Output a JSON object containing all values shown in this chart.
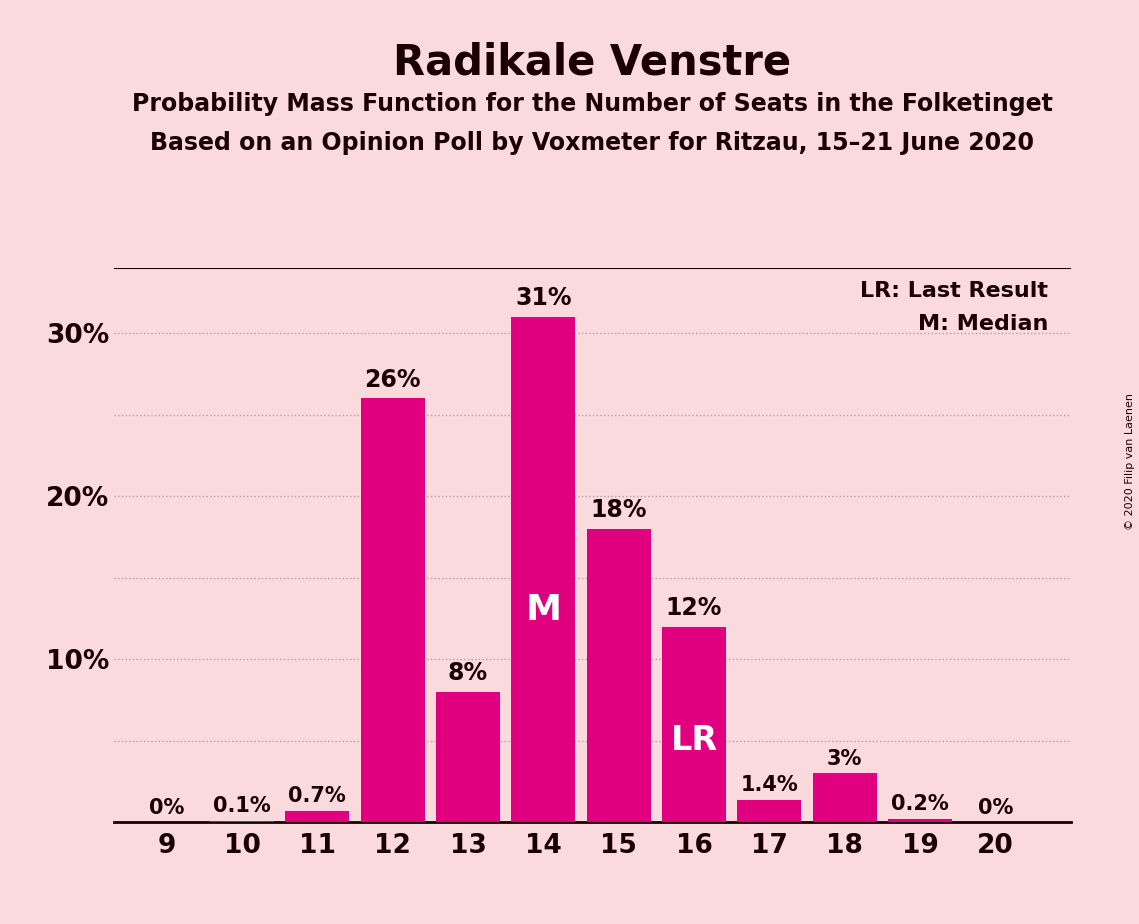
{
  "title": "Radikale Venstre",
  "subtitle1": "Probability Mass Function for the Number of Seats in the Folketinget",
  "subtitle2": "Based on an Opinion Poll by Voxmeter for Ritzau, 15–21 June 2020",
  "copyright": "© 2020 Filip van Laenen",
  "seats": [
    9,
    10,
    11,
    12,
    13,
    14,
    15,
    16,
    17,
    18,
    19,
    20
  ],
  "values": [
    0.0,
    0.1,
    0.7,
    26.0,
    8.0,
    31.0,
    18.0,
    12.0,
    1.4,
    3.0,
    0.2,
    0.0
  ],
  "labels": [
    "0%",
    "0.1%",
    "0.7%",
    "26%",
    "8%",
    "31%",
    "18%",
    "12%",
    "1.4%",
    "3%",
    "0.2%",
    "0%"
  ],
  "bar_color": "#e0007f",
  "background_color": "#fadadd",
  "text_color": "#1a0000",
  "label_color_outside": "#1a0000",
  "label_color_inside": "#ffffff",
  "median_seat": 14,
  "last_result_seat": 16,
  "ylim": [
    0,
    34
  ],
  "yticks": [
    10,
    20,
    30
  ],
  "ytick_labels": [
    "10%",
    "20%",
    "30%"
  ],
  "grid_yticks": [
    5,
    10,
    15,
    20,
    25,
    30
  ],
  "grid_color": "#b0a0a8",
  "legend_lr": "LR: Last Result",
  "legend_m": "M: Median",
  "title_fontsize": 30,
  "subtitle_fontsize": 17,
  "axis_fontsize": 19,
  "label_fontsize_large": 17,
  "label_fontsize_small": 15
}
